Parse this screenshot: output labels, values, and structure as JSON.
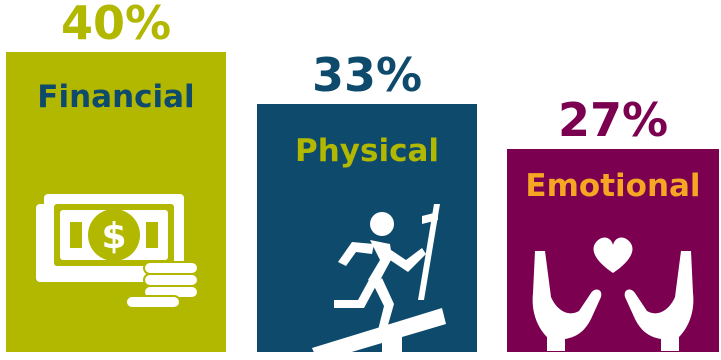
{
  "chart_data": {
    "type": "bar",
    "categories": [
      "Financial",
      "Physical",
      "Emotional"
    ],
    "values": [
      40,
      33,
      27
    ],
    "value_labels": [
      "40%",
      "33%",
      "27%"
    ],
    "unit": "%",
    "bar_colors": [
      "#b2b800",
      "#0d4a6b",
      "#7b0050"
    ],
    "value_label_colors": [
      "#b2b800",
      "#0d4a6b",
      "#7b0050"
    ],
    "category_label_colors": [
      "#0d4a6b",
      "#b2b800",
      "#f5a623"
    ],
    "icons": [
      "money-icon",
      "treadmill-runner-icon",
      "hands-heart-icon"
    ]
  }
}
